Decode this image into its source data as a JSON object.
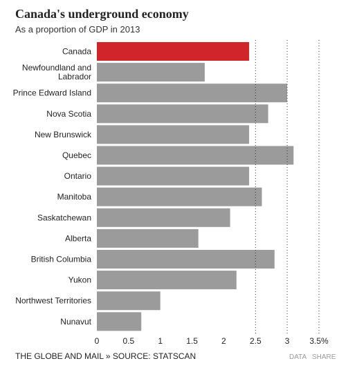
{
  "header": {
    "title": "Canada's underground economy",
    "subtitle": "As a proportion of GDP in 2013"
  },
  "footer": {
    "source": "THE GLOBE AND MAIL » SOURCE: STATSCAN",
    "data_link": "DATA",
    "share_link": "SHARE"
  },
  "colors": {
    "highlight": "#d0262b",
    "bar": "#9b9b9b",
    "gridline": "#333333"
  },
  "chart_data": {
    "type": "bar",
    "orientation": "horizontal",
    "title": "Canada's underground economy",
    "subtitle": "As a proportion of GDP in 2013",
    "categories": [
      "Canada",
      "Newfoundland and Labrador",
      "Prince Edward Island",
      "Nova Scotia",
      "New Brunswick",
      "Quebec",
      "Ontario",
      "Manitoba",
      "Saskatchewan",
      "Alberta",
      "British Columbia",
      "Yukon",
      "Northwest Territories",
      "Nunavut"
    ],
    "category_label_lines": [
      [
        "Canada"
      ],
      [
        "Newfoundland and",
        "Labrador"
      ],
      [
        "Prince Edward Island"
      ],
      [
        "Nova Scotia"
      ],
      [
        "New Brunswick"
      ],
      [
        "Quebec"
      ],
      [
        "Ontario"
      ],
      [
        "Manitoba"
      ],
      [
        "Saskatchewan"
      ],
      [
        "Alberta"
      ],
      [
        "British Columbia"
      ],
      [
        "Yukon"
      ],
      [
        "Northwest Territories"
      ],
      [
        "Nunavut"
      ]
    ],
    "values": [
      2.4,
      1.7,
      3.0,
      2.7,
      2.4,
      3.1,
      2.4,
      2.6,
      2.1,
      1.6,
      2.8,
      2.2,
      1.0,
      0.7
    ],
    "highlight_index": 0,
    "xlim": [
      0,
      3.5
    ],
    "xticks": [
      0,
      0.5,
      1,
      1.5,
      2,
      2.5,
      3,
      3.5
    ],
    "xtick_labels": [
      "0",
      "0.5",
      "1",
      "1.5",
      "2",
      "2.5",
      "3",
      "3.5%"
    ],
    "gridlines": [
      2.5,
      3,
      3.5
    ],
    "grid_style": "dotted",
    "xlabel": "",
    "ylabel": ""
  }
}
